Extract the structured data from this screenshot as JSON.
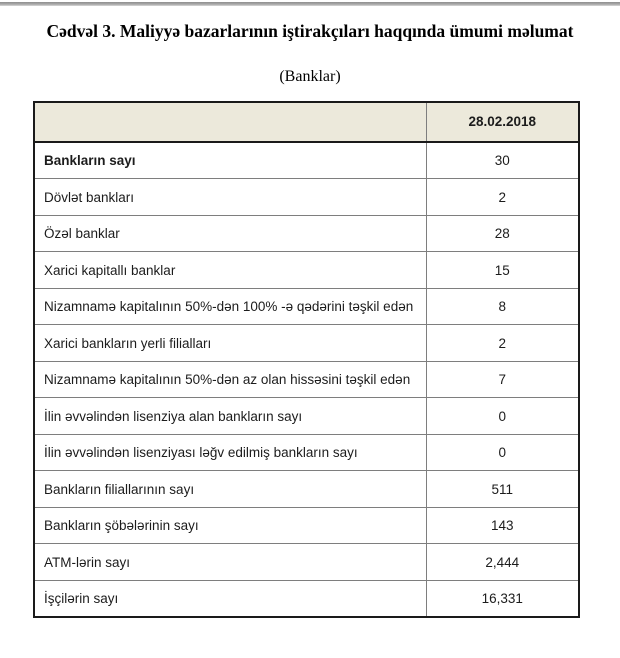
{
  "page": {
    "title": "Cədvəl 3. Maliyyə bazarlarının iştirakçıları haqqında ümumi məlumat",
    "subtitle": "(Banklar)"
  },
  "colors": {
    "header_bg": "#ece9db",
    "outer_border": "#1a1a1a",
    "inner_border": "#7e7e7e",
    "text": "#1c1c1c"
  },
  "table": {
    "date_header": "28.02.2018",
    "rows": [
      {
        "label": "Bankların sayı",
        "value": "30",
        "bold": true
      },
      {
        "label": "Dövlət bankları",
        "value": "2",
        "bold": false
      },
      {
        "label": "Özəl banklar",
        "value": "28",
        "bold": false
      },
      {
        "label": "Xarici kapitallı banklar",
        "value": "15",
        "bold": false
      },
      {
        "label": "Nizamnamə kapitalının 50%-dən 100% -ə qədərini təşkil edən",
        "value": "8",
        "bold": false
      },
      {
        "label": "Xarici bankların yerli filialları",
        "value": "2",
        "bold": false
      },
      {
        "label": "Nizamnamə kapitalının 50%-dən az olan hissəsini  təşkil edən",
        "value": "7",
        "bold": false
      },
      {
        "label": "İlin əvvəlindən lisenziya alan bankların sayı",
        "value": "0",
        "bold": false
      },
      {
        "label": "İlin əvvəlindən lisenziyası ləğv edilmiş bankların sayı",
        "value": "0",
        "bold": false
      },
      {
        "label": "Bankların filiallarının sayı",
        "value": "511",
        "bold": false
      },
      {
        "label": "Bankların şöbələrinin sayı",
        "value": "143",
        "bold": false
      },
      {
        "label": "ATM-lərin sayı",
        "value": "2,444",
        "bold": false
      },
      {
        "label": "İşçilərin sayı",
        "value": "16,331",
        "bold": false
      }
    ]
  }
}
